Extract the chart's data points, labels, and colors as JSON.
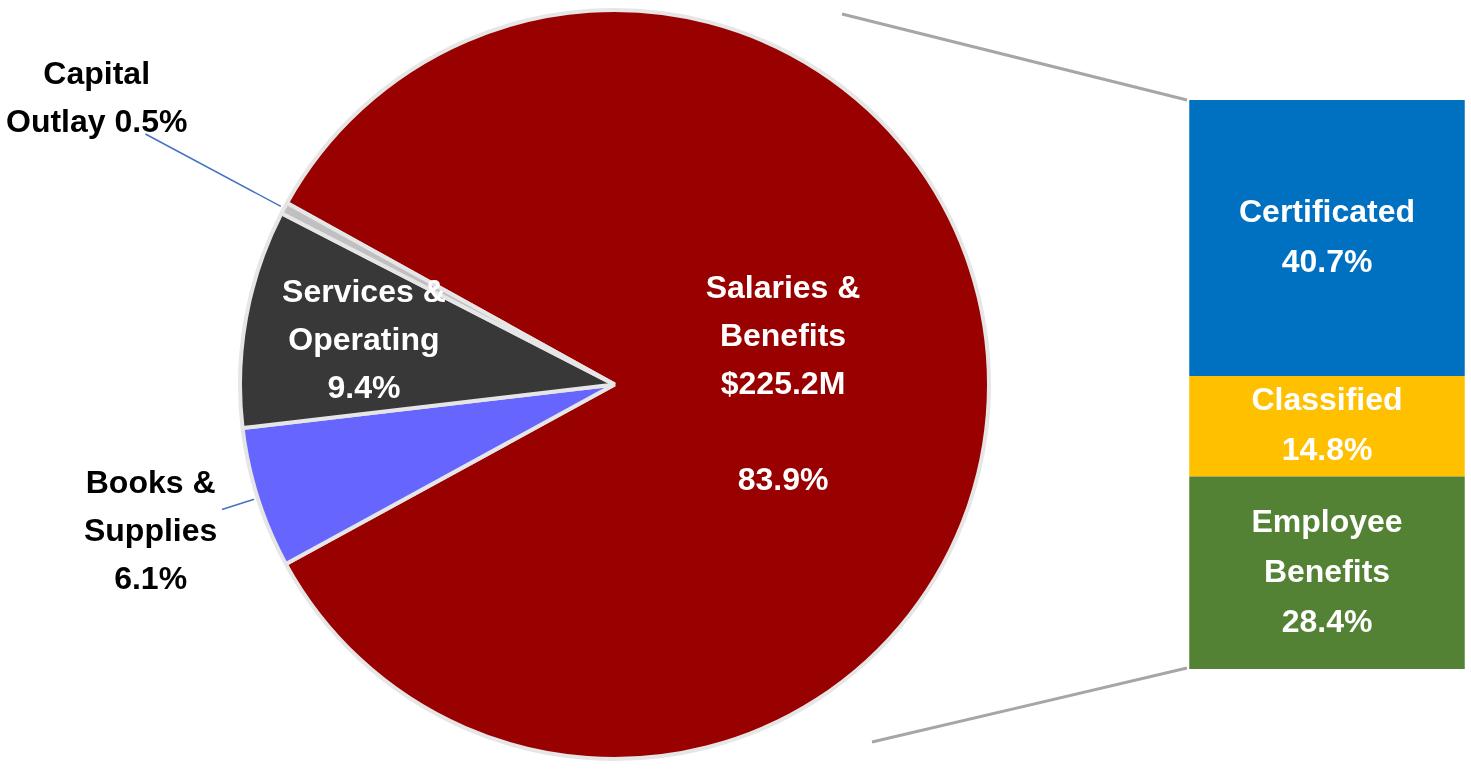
{
  "chart_data": [
    {
      "type": "pie",
      "categories": [
        "Salaries & Benefits",
        "Books & Supplies",
        "Services & Operating",
        "Capital Outlay"
      ],
      "values": [
        83.9,
        6.1,
        9.4,
        0.5
      ],
      "colors": [
        "#990000",
        "#6666ff",
        "#383838",
        "#c0c0c0"
      ],
      "value_labels": [
        "$225.2M\n\n83.9%",
        "6.1%",
        "9.4%",
        "0.5%"
      ],
      "legend": false
    },
    {
      "type": "bar",
      "stacked": true,
      "categories": [
        null
      ],
      "tick_labels": false,
      "legend": false,
      "series": [
        {
          "name": "Employee Benefits",
          "color": "#548235",
          "values": [
            28.4
          ],
          "value_labels": [
            "28.4%"
          ]
        },
        {
          "name": "Classified",
          "color": "#ffc000",
          "values": [
            14.8
          ],
          "value_labels": [
            "14.8%"
          ]
        },
        {
          "name": "Certificated",
          "color": "#0070c0",
          "values": [
            40.7
          ],
          "value_labels": [
            "40.7%"
          ]
        }
      ]
    }
  ]
}
